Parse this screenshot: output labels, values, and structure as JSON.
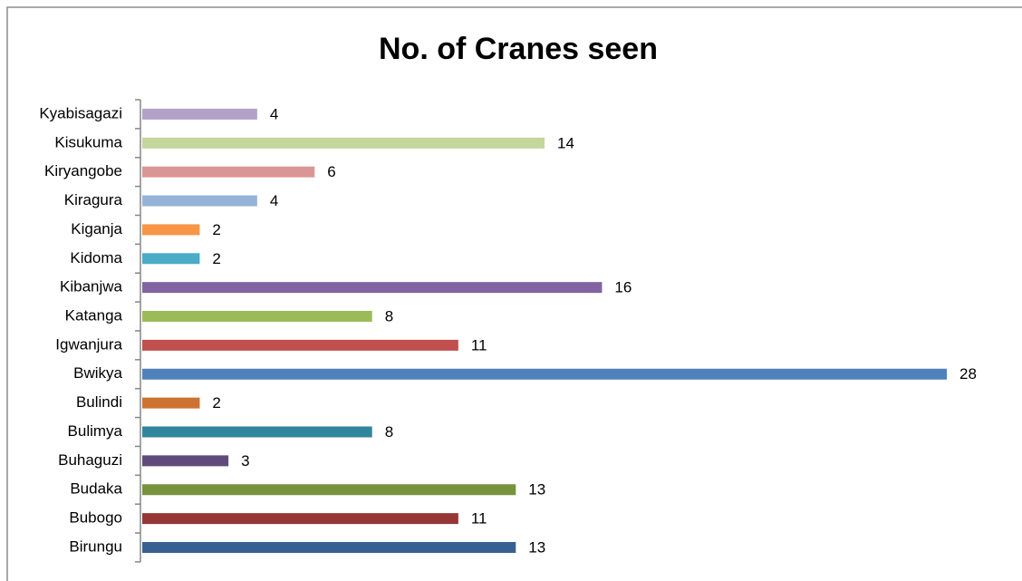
{
  "chart_data": {
    "type": "bar",
    "orientation": "horizontal",
    "title": "No. of Cranes seen",
    "categories": [
      "Kyabisagazi",
      "Kisukuma",
      "Kiryangobe",
      "Kiragura",
      "Kiganja",
      "Kidoma",
      "Kibanjwa",
      "Katanga",
      "Igwanjura",
      "Bwikya",
      "Bulindi",
      "Bulimya",
      "Buhaguzi",
      "Budaka",
      "Bubogo",
      "Birungu"
    ],
    "values": [
      4,
      14,
      6,
      4,
      2,
      2,
      16,
      8,
      11,
      28,
      2,
      8,
      3,
      13,
      11,
      13
    ],
    "colors": [
      "#b3a2c7",
      "#c3d69b",
      "#d99694",
      "#95b3d7",
      "#f79646",
      "#4bacc6",
      "#8064a2",
      "#9bbb59",
      "#c0504d",
      "#4f81bd",
      "#cc7333",
      "#31859c",
      "#604a7b",
      "#77933c",
      "#953735",
      "#376092"
    ]
  }
}
